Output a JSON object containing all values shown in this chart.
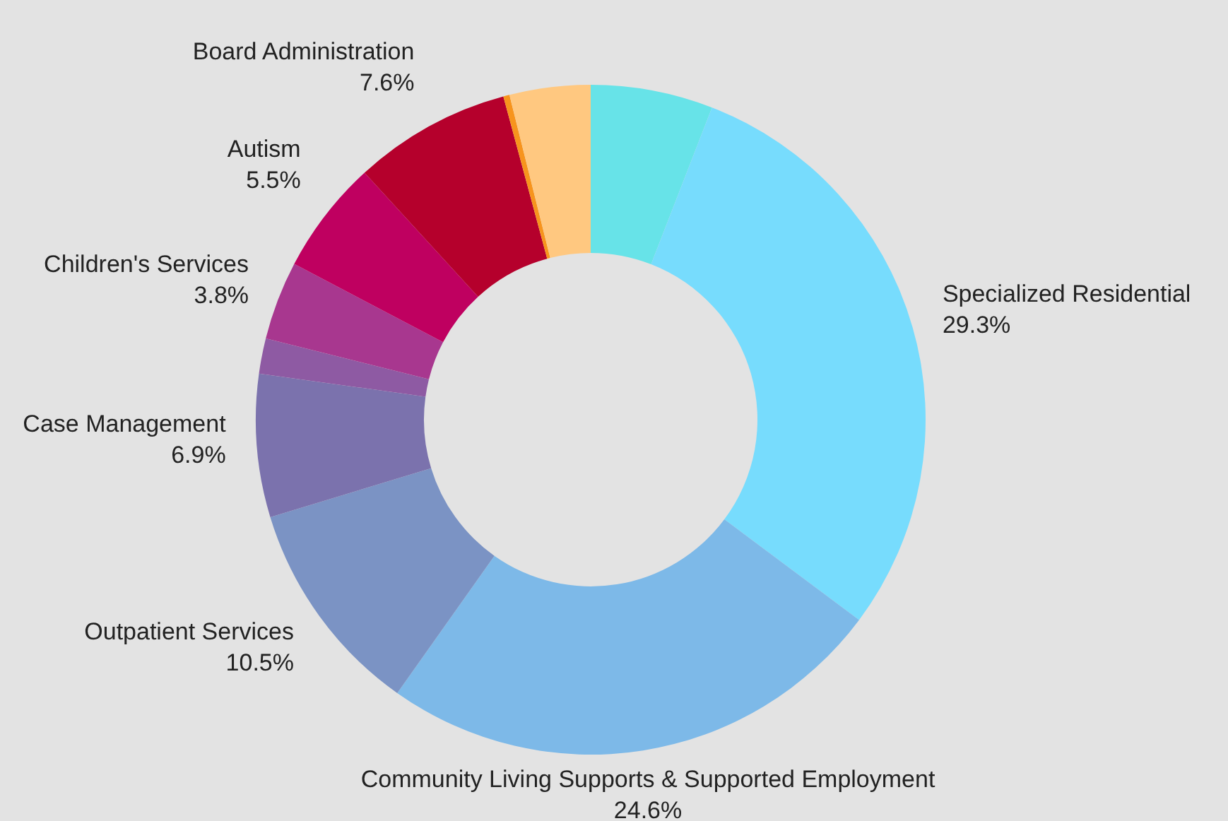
{
  "chart_data": {
    "type": "donut",
    "categories": [
      null,
      "Specialized Residential",
      "Community Living Supports & Supported Employment",
      "Outpatient Services",
      "Case Management",
      null,
      "Children's Services",
      "Autism",
      "Board Administration",
      null,
      null
    ],
    "values": [
      5.9,
      29.3,
      24.6,
      10.5,
      6.9,
      1.7,
      3.8,
      5.5,
      7.6,
      0.3,
      3.9
    ],
    "value_labels": [
      null,
      "29.3%",
      "24.6%",
      "10.5%",
      "6.9%",
      null,
      "3.8%",
      "5.5%",
      "7.6%",
      null,
      null
    ],
    "colors": [
      "#67e3e8",
      "#77dcfd",
      "#7db9e8",
      "#7b93c4",
      "#7b72ad",
      "#8e5aa3",
      "#a8378f",
      "#bf0060",
      "#b5002c",
      "#f7941d",
      "#ffc880"
    ]
  }
}
